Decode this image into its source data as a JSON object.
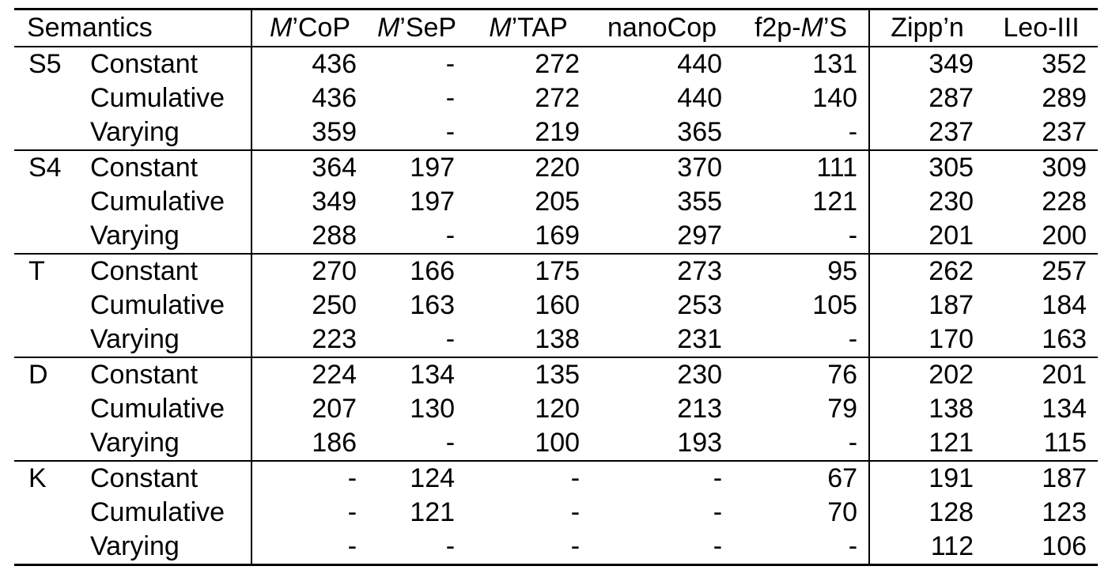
{
  "table": {
    "header": {
      "semantics_label": "Semantics",
      "solver_columns": [
        {
          "id": "mcop",
          "parts": [
            [
              "M",
              true
            ],
            [
              "’CoP",
              false
            ]
          ]
        },
        {
          "id": "msep",
          "parts": [
            [
              "M",
              true
            ],
            [
              "’SeP",
              false
            ]
          ]
        },
        {
          "id": "mtap",
          "parts": [
            [
              "M",
              true
            ],
            [
              "’TAP",
              false
            ]
          ]
        },
        {
          "id": "nanocop",
          "parts": [
            [
              "nanoCop",
              false
            ]
          ]
        },
        {
          "id": "f2p-ms",
          "parts": [
            [
              "f2p-",
              false
            ],
            [
              "M",
              true
            ],
            [
              "’S",
              false
            ]
          ]
        },
        {
          "id": "zippn",
          "parts": [
            [
              "Zipp’n",
              false
            ]
          ]
        },
        {
          "id": "leo-iii",
          "parts": [
            [
              "Leo-III",
              false
            ]
          ]
        }
      ]
    },
    "missing_marker": "-",
    "groups": [
      {
        "semantics": "S5",
        "rows": [
          {
            "domain": "Constant",
            "values": [
              "436",
              "-",
              "272",
              "440",
              "131",
              "349",
              "352"
            ]
          },
          {
            "domain": "Cumulative",
            "values": [
              "436",
              "-",
              "272",
              "440",
              "140",
              "287",
              "289"
            ]
          },
          {
            "domain": "Varying",
            "values": [
              "359",
              "-",
              "219",
              "365",
              "-",
              "237",
              "237"
            ]
          }
        ]
      },
      {
        "semantics": "S4",
        "rows": [
          {
            "domain": "Constant",
            "values": [
              "364",
              "197",
              "220",
              "370",
              "111",
              "305",
              "309"
            ]
          },
          {
            "domain": "Cumulative",
            "values": [
              "349",
              "197",
              "205",
              "355",
              "121",
              "230",
              "228"
            ]
          },
          {
            "domain": "Varying",
            "values": [
              "288",
              "-",
              "169",
              "297",
              "-",
              "201",
              "200"
            ]
          }
        ]
      },
      {
        "semantics": "T",
        "rows": [
          {
            "domain": "Constant",
            "values": [
              "270",
              "166",
              "175",
              "273",
              "95",
              "262",
              "257"
            ]
          },
          {
            "domain": "Cumulative",
            "values": [
              "250",
              "163",
              "160",
              "253",
              "105",
              "187",
              "184"
            ]
          },
          {
            "domain": "Varying",
            "values": [
              "223",
              "-",
              "138",
              "231",
              "-",
              "170",
              "163"
            ]
          }
        ]
      },
      {
        "semantics": "D",
        "rows": [
          {
            "domain": "Constant",
            "values": [
              "224",
              "134",
              "135",
              "230",
              "76",
              "202",
              "201"
            ]
          },
          {
            "domain": "Cumulative",
            "values": [
              "207",
              "130",
              "120",
              "213",
              "79",
              "138",
              "134"
            ]
          },
          {
            "domain": "Varying",
            "values": [
              "186",
              "-",
              "100",
              "193",
              "-",
              "121",
              "115"
            ]
          }
        ]
      },
      {
        "semantics": "K",
        "rows": [
          {
            "domain": "Constant",
            "values": [
              "-",
              "124",
              "-",
              "-",
              "67",
              "191",
              "187"
            ]
          },
          {
            "domain": "Cumulative",
            "values": [
              "-",
              "121",
              "-",
              "-",
              "70",
              "128",
              "123"
            ]
          },
          {
            "domain": "Varying",
            "values": [
              "-",
              "-",
              "-",
              "-",
              "-",
              "112",
              "106"
            ]
          }
        ]
      }
    ]
  },
  "colors": {
    "rule": "#000000",
    "text": "#000000",
    "background": "#ffffff"
  }
}
